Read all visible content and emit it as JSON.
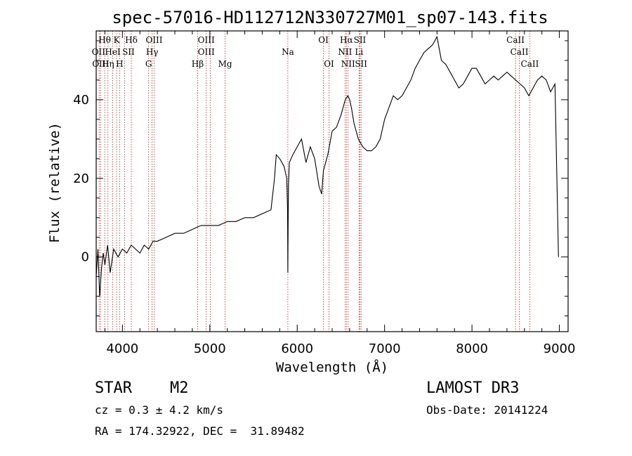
{
  "chart_data": {
    "type": "line",
    "title": "spec-57016-HD112712N330727M01_sp07-143.fits",
    "xlabel": "Wavelength (Å)",
    "ylabel": "Flux (relative)",
    "xlim": [
      3700,
      9100
    ],
    "ylim": [
      -19,
      57.5
    ],
    "xticks": [
      4000,
      5000,
      6000,
      7000,
      8000,
      9000
    ],
    "yticks": [
      0,
      20,
      40
    ],
    "grid": false,
    "series": [
      {
        "x": [
          3700,
          3720,
          3740,
          3760,
          3780,
          3800,
          3830,
          3860,
          3900,
          3950,
          4000,
          4050,
          4100,
          4150,
          4200,
          4250,
          4300,
          4350,
          4400,
          4500,
          4600,
          4700,
          4800,
          4900,
          5000,
          5100,
          5200,
          5300,
          5400,
          5500,
          5600,
          5700,
          5720,
          5740,
          5760,
          5800,
          5850,
          5880,
          5890,
          5893,
          5896,
          5900,
          5910,
          5950,
          6000,
          6050,
          6100,
          6150,
          6200,
          6250,
          6280,
          6300,
          6350,
          6400,
          6450,
          6500,
          6550,
          6580,
          6600,
          6620,
          6650,
          6700,
          6750,
          6800,
          6850,
          6900,
          6950,
          7000,
          7050,
          7100,
          7150,
          7200,
          7250,
          7300,
          7350,
          7400,
          7450,
          7500,
          7550,
          7600,
          7650,
          7700,
          7750,
          7800,
          7850,
          7900,
          7950,
          8000,
          8050,
          8100,
          8150,
          8200,
          8250,
          8300,
          8350,
          8400,
          8450,
          8500,
          8550,
          8600,
          8650,
          8700,
          8750,
          8800,
          8850,
          8900,
          8950,
          8990
        ],
        "values": [
          -5,
          2,
          -10,
          -3,
          1,
          -2,
          3,
          -4,
          2,
          0,
          2,
          1,
          3,
          2,
          1,
          3,
          2,
          4,
          4,
          5,
          6,
          6,
          7,
          8,
          8,
          8,
          9,
          9,
          10,
          10,
          11,
          12,
          16,
          20,
          26,
          25,
          23,
          20,
          12,
          -4,
          8,
          18,
          24,
          26,
          28,
          30,
          24,
          28,
          25,
          18,
          16,
          22,
          26,
          32,
          33,
          36,
          40,
          41,
          40,
          38,
          34,
          30,
          28,
          27,
          27,
          28,
          30,
          35,
          38,
          41,
          40,
          41,
          43,
          45,
          48,
          50,
          52,
          53,
          54,
          56,
          50,
          49,
          47,
          45,
          43,
          44,
          46,
          48,
          48,
          46,
          44,
          45,
          46,
          45,
          46,
          47,
          46,
          45,
          44,
          43,
          41,
          43,
          45,
          46,
          45,
          42,
          44,
          0
        ]
      }
    ],
    "annotation_lines": [
      3734,
      3750,
      3798,
      3835,
      3889,
      3934,
      3968,
      4026,
      4102,
      4300,
      4340,
      4363,
      4861,
      4959,
      5007,
      5175,
      5893,
      6300,
      6364,
      6548,
      6563,
      6583,
      6708,
      6717,
      6731,
      8498,
      8542,
      8662
    ],
    "annotation_labels": [
      {
        "text": "Hθ",
        "x": 3797,
        "row": 1
      },
      {
        "text": "K",
        "x": 3934,
        "row": 1
      },
      {
        "text": "Hδ",
        "x": 4102,
        "row": 1
      },
      {
        "text": "OIII",
        "x": 4363,
        "row": 1
      },
      {
        "text": "OIII",
        "x": 4959,
        "row": 1
      },
      {
        "text": "OI",
        "x": 6300,
        "row": 1
      },
      {
        "text": "Hα",
        "x": 6563,
        "row": 1
      },
      {
        "text": "SII",
        "x": 6717,
        "row": 1
      },
      {
        "text": "CaII",
        "x": 8498,
        "row": 1
      },
      {
        "text": "OII",
        "x": 3727,
        "row": 2
      },
      {
        "text": "HeI",
        "x": 3889,
        "row": 2
      },
      {
        "text": "SII",
        "x": 4069,
        "row": 2
      },
      {
        "text": "Hγ",
        "x": 4340,
        "row": 2
      },
      {
        "text": "OIII",
        "x": 4959,
        "row": 2
      },
      {
        "text": "Na",
        "x": 5893,
        "row": 2
      },
      {
        "text": "NII",
        "x": 6548,
        "row": 2
      },
      {
        "text": "Li",
        "x": 6708,
        "row": 2
      },
      {
        "text": "CaII",
        "x": 8542,
        "row": 2
      },
      {
        "text": "OIII",
        "x": 3750,
        "row": 3
      },
      {
        "text": "Hη",
        "x": 3835,
        "row": 3
      },
      {
        "text": "H",
        "x": 3968,
        "row": 3
      },
      {
        "text": "G",
        "x": 4300,
        "row": 3
      },
      {
        "text": "Hβ",
        "x": 4861,
        "row": 3
      },
      {
        "text": "Mg",
        "x": 5175,
        "row": 3
      },
      {
        "text": "OI",
        "x": 6364,
        "row": 3
      },
      {
        "text": "NII",
        "x": 6583,
        "row": 3
      },
      {
        "text": "SII",
        "x": 6731,
        "row": 3
      },
      {
        "text": "CaII",
        "x": 8662,
        "row": 3
      }
    ]
  },
  "info": {
    "class_label": "STAR",
    "subclass": "M2",
    "survey": "LAMOST DR3",
    "cz": "cz = 0.3 ± 4.2 km/s",
    "obs_date": "Obs-Date: 20141224",
    "radec": "RA = 174.32922, DEC =  31.89482"
  },
  "colors": {
    "line": "#000000",
    "annotation": "#b22222"
  }
}
